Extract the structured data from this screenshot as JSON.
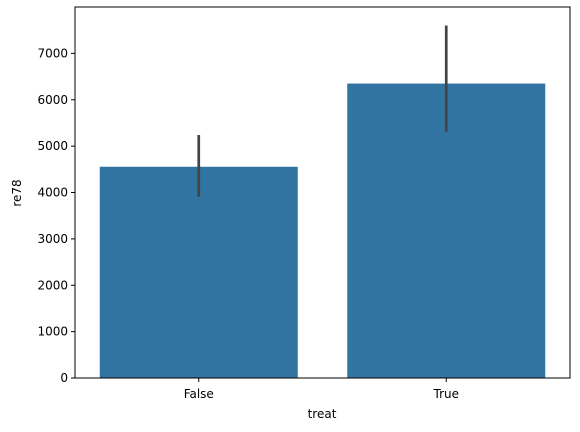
{
  "chart_data": {
    "type": "bar",
    "xlabel": "treat",
    "ylabel": "re78",
    "categories": [
      "False",
      "True"
    ],
    "values": [
      4555,
      6349
    ],
    "ci_low": [
      3910,
      5310
    ],
    "ci_high": [
      5240,
      7600
    ],
    "color": "#3274a1",
    "errcolor": "#444444",
    "ylim": [
      0,
      8000
    ],
    "yticks": [
      0,
      1000,
      2000,
      3000,
      4000,
      5000,
      6000,
      7000
    ],
    "grid": false
  }
}
